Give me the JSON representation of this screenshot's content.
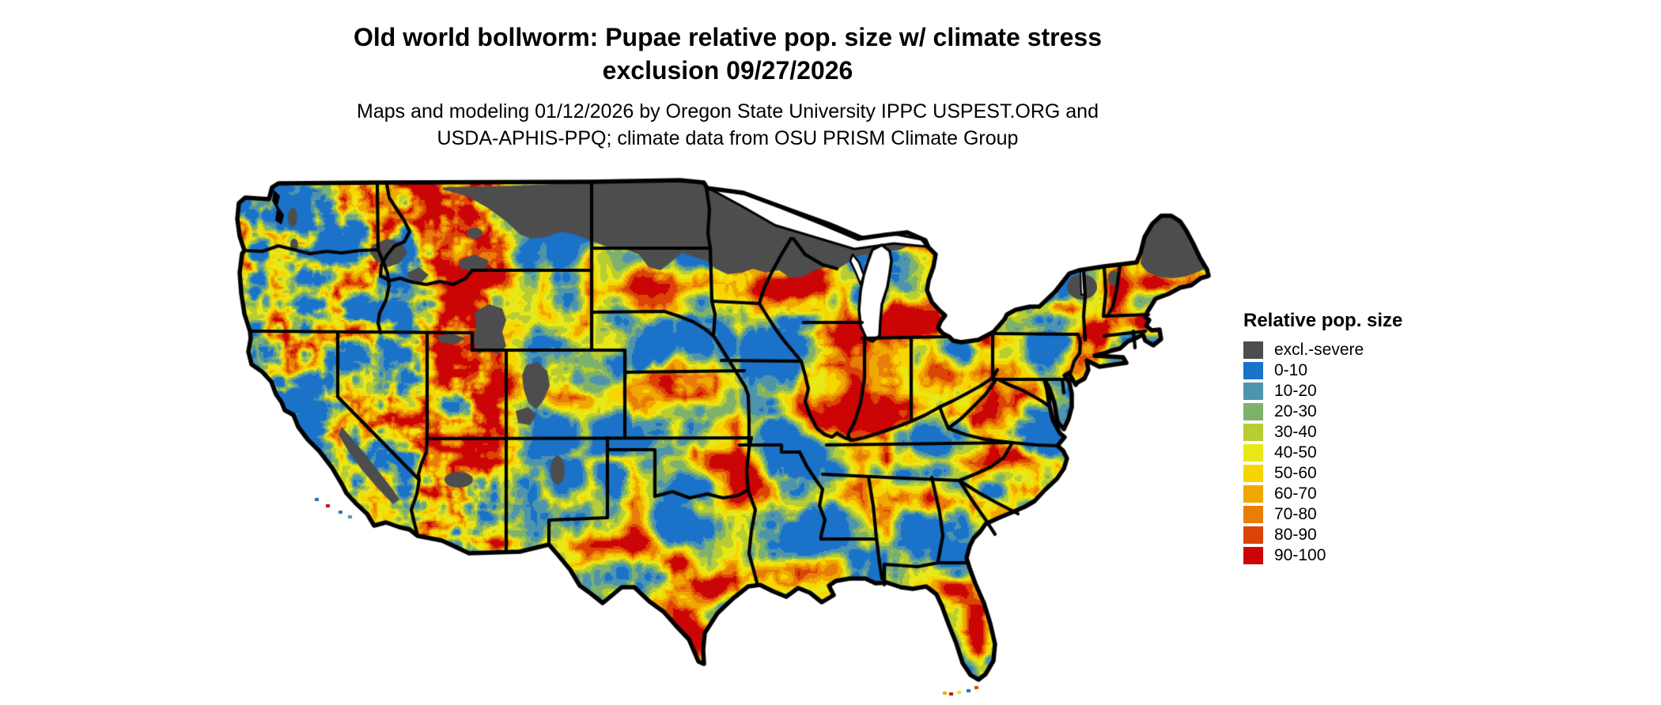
{
  "title": {
    "line1": "Old world bollworm: Pupae relative pop. size w/ climate stress",
    "line2": "exclusion 09/27/2026"
  },
  "subtitle": {
    "line1": "Maps and modeling 01/12/2026 by Oregon State University IPPC USPEST.ORG and",
    "line2": "USDA-APHIS-PPQ; climate data from OSU PRISM Climate Group"
  },
  "legend": {
    "title": "Relative pop. size",
    "entries": [
      {
        "label": "excl.-severe",
        "color": "#4d4d4d"
      },
      {
        "label": "0-10",
        "color": "#1a73c8"
      },
      {
        "label": "10-20",
        "color": "#4e94ac"
      },
      {
        "label": "20-30",
        "color": "#7eb16c"
      },
      {
        "label": "30-40",
        "color": "#b8cc34"
      },
      {
        "label": "40-50",
        "color": "#e8e818"
      },
      {
        "label": "50-60",
        "color": "#f6d503"
      },
      {
        "label": "60-70",
        "color": "#f0a800"
      },
      {
        "label": "70-80",
        "color": "#e87d0a"
      },
      {
        "label": "80-90",
        "color": "#dc4405"
      },
      {
        "label": "90-100",
        "color": "#cb0505"
      }
    ]
  },
  "map": {
    "background": "#ffffff",
    "outline_color": "#000000",
    "excluded_color": "#4d4d4d",
    "base_color": "#1a73c8",
    "lake_color": "#ffffff"
  }
}
